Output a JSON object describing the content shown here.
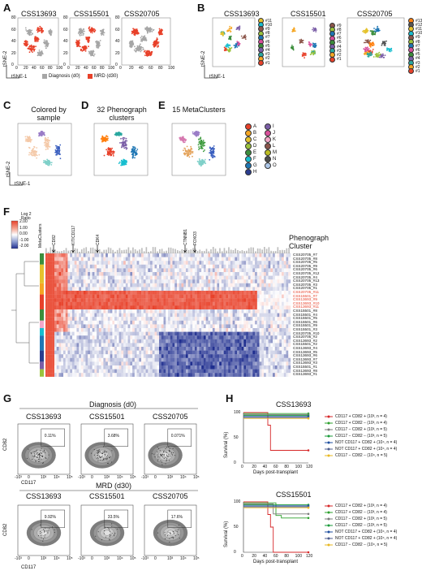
{
  "panels": {
    "A": {
      "label": "A",
      "titles": [
        "CSS13693",
        "CSS15501",
        "CSS20705"
      ],
      "xticks": [
        "0",
        "20",
        "40",
        "60",
        "80",
        "100"
      ],
      "yticks": [
        "80",
        "60",
        "40",
        "20",
        "0"
      ],
      "xaxis": "tSNE-1",
      "yaxis": "tSNE-2",
      "legend": [
        {
          "label": "Diagnosis (d0)",
          "color": "#a6a6a6"
        },
        {
          "label": "MRD (d30)",
          "color": "#e8412a"
        }
      ]
    },
    "B": {
      "label": "B",
      "titles": [
        "CSS13693",
        "CSS15501",
        "CSS20705"
      ],
      "xaxis": "tSNE-1",
      "yaxis": "tSNE-2",
      "legend13693": [
        "#11",
        "#10",
        "#9",
        "#8",
        "#7",
        "#6",
        "#5",
        "#4",
        "#3",
        "#2",
        "#1"
      ],
      "legend15501": [
        "#9",
        "#8",
        "#7",
        "#6",
        "#5",
        "#4",
        "#3",
        "#2",
        "#1"
      ],
      "legend20705": [
        "#13",
        "#12",
        "#11",
        "#10",
        "#9",
        "#8",
        "#7",
        "#6",
        "#5",
        "#4",
        "#3",
        "#2",
        "#1"
      ]
    },
    "C": {
      "label": "C",
      "title": "Colored by sample",
      "xaxis": "tSNE-1",
      "yaxis": "tSNE-2"
    },
    "D": {
      "label": "D",
      "title": "32 Phenograph clusters"
    },
    "E": {
      "label": "E",
      "title": "15 MetaClusters"
    },
    "meta_legend": [
      "A",
      "B",
      "C",
      "D",
      "E",
      "F",
      "G",
      "H",
      "I",
      "J",
      "K",
      "L",
      "M",
      "N",
      "O"
    ],
    "F": {
      "label": "F",
      "scale_title": "Log 2 Ratio",
      "scale_ticks": [
        "2.00",
        "1.00",
        "0.00",
        "-1.00",
        "-2.00"
      ],
      "meta_label": "MetaClusters",
      "markers": [
        "CD82",
        "KIT/CD117",
        "CDK4",
        "CTNNB1",
        "FOXO3"
      ],
      "cluster_header": "Phenograph Cluster",
      "rows": [
        "CSS20705_#7",
        "CSS20705_#8",
        "CSS20705_#5",
        "CSS20705_#9",
        "CSS20705_#6",
        "CSS20705_#12",
        "CSS20705_#4",
        "CSS20705_#13",
        "CSS20705_#3",
        "CSS20705_#1",
        "CSS20705_#11",
        "CSS15501_#7",
        "CSS13693_#9",
        "CSS13693_#10",
        "CSS13693_#11",
        "CSS15501_#8",
        "CSS15501_#4",
        "CSS15501_#5",
        "CSS15501_#6",
        "CSS15501_#9",
        "CSS15501_#3",
        "CSS20705_#10",
        "CSS20705_#2",
        "CSS13693_#2",
        "CSS15501_#2",
        "CSS13693_#4",
        "CSS13693_#5",
        "CSS13693_#6",
        "CSS13693_#7",
        "CSS13693_#3",
        "CSS15501_#1",
        "CSS13693_#8",
        "CSS13693_#1"
      ],
      "highlight_rows": [
        "CSS20705_#11",
        "CSS15501_#7",
        "CSS13693_#9",
        "CSS13693_#10",
        "CSS13693_#11"
      ]
    },
    "G": {
      "label": "G",
      "top_title": "Diagnosis (d0)",
      "bottom_title": "MRD (d30)",
      "samples": [
        "CSS13693",
        "CSS15501",
        "CSS20705"
      ],
      "top_gate": [
        "0.11%",
        "3.68%",
        "0.071%"
      ],
      "bottom_gate": [
        "9.92%",
        "33.5%",
        "17.6%"
      ],
      "yaxis": "CD82",
      "xaxis": "CD117",
      "ticks": [
        "-10³",
        "0",
        "10³",
        "10⁴",
        "10⁵"
      ]
    },
    "H": {
      "label": "H",
      "top_title": "CSS13693",
      "bottom_title": "CSS15501",
      "yaxis": "Survival (%)",
      "xaxis": "Days post-transplant",
      "yticks": [
        "100",
        "50",
        "0"
      ],
      "xticks": [
        "0",
        "20",
        "40",
        "60",
        "80",
        "100",
        "120"
      ],
      "legend": [
        {
          "label": "CD117 + CD82 + (10³, n = 4)",
          "color": "#d62728"
        },
        {
          "label": "CD117 + CD82 − (10³, n = 4)",
          "color": "#2ca02c"
        },
        {
          "label": "CD117 − CD82 + (10³, n = 5)",
          "color": "#7a7a7a"
        },
        {
          "label": "CD117 − CD82 − (10³, n = 5)",
          "color": "#1a9a3a"
        },
        {
          "label": "NOT CD117 + CD82 + (10⁴, n = 4)",
          "color": "#1f4fa0"
        },
        {
          "label": "NOT CD117 + CD82 + (10⁴, n = 4)",
          "color": "#4d5d8d"
        },
        {
          "label": "CD117 − CD82 − (10⁴, n = 5)",
          "color": "#e8b822"
        }
      ]
    }
  },
  "chart_data": [
    {
      "type": "line",
      "title": "CSS13693",
      "xlabel": "Days post-transplant",
      "ylabel": "Survival (%)",
      "xlim": [
        0,
        120
      ],
      "ylim": [
        0,
        100
      ],
      "series": [
        {
          "name": "CD117 + CD82 + (10³, n = 4)",
          "x": [
            0,
            45,
            45,
            50,
            50,
            120
          ],
          "y": [
            100,
            100,
            75,
            75,
            25,
            25
          ]
        },
        {
          "name": "CD117 + CD82 − (10³, n = 4)",
          "x": [
            0,
            120
          ],
          "y": [
            100,
            100
          ]
        },
        {
          "name": "CD117 − CD82 + (10³, n = 5)",
          "x": [
            0,
            120
          ],
          "y": [
            100,
            100
          ]
        },
        {
          "name": "CD117 − CD82 − (10³, n = 5)",
          "x": [
            0,
            120
          ],
          "y": [
            100,
            100
          ]
        },
        {
          "name": "NOT CD117 + CD82 + (10⁴, n = 4)",
          "x": [
            0,
            120
          ],
          "y": [
            100,
            100
          ]
        },
        {
          "name": "NOT CD117 + CD82 + (10⁴, n = 4)",
          "x": [
            0,
            120
          ],
          "y": [
            100,
            100
          ]
        },
        {
          "name": "CD117 − CD82 − (10⁴, n = 5)",
          "x": [
            0,
            120
          ],
          "y": [
            100,
            100
          ]
        }
      ]
    },
    {
      "type": "line",
      "title": "CSS15501",
      "xlabel": "Days post-transplant",
      "ylabel": "Survival (%)",
      "xlim": [
        0,
        120
      ],
      "ylim": [
        0,
        100
      ],
      "series": [
        {
          "name": "CD117 + CD82 + (10³, n = 4)",
          "x": [
            0,
            45,
            45,
            50,
            50,
            55,
            55,
            120
          ],
          "y": [
            100,
            100,
            75,
            75,
            50,
            50,
            0,
            0
          ]
        },
        {
          "name": "CD117 + CD82 − (10³, n = 4)",
          "x": [
            0,
            60,
            60,
            70,
            70,
            120
          ],
          "y": [
            100,
            100,
            75,
            75,
            70,
            70
          ]
        },
        {
          "name": "CD117 − CD82 + (10³, n = 5)",
          "x": [
            0,
            55,
            55,
            120
          ],
          "y": [
            100,
            100,
            80,
            80
          ]
        },
        {
          "name": "CD117 − CD82 − (10³, n = 5)",
          "x": [
            0,
            120
          ],
          "y": [
            100,
            100
          ]
        },
        {
          "name": "NOT CD117 + CD82 + (10⁴, n = 4)",
          "x": [
            0,
            120
          ],
          "y": [
            100,
            100
          ]
        },
        {
          "name": "NOT CD117 + CD82 + (10⁴, n = 4)",
          "x": [
            0,
            120
          ],
          "y": [
            100,
            100
          ]
        },
        {
          "name": "CD117 − CD82 − (10⁴, n = 5)",
          "x": [
            0,
            120
          ],
          "y": [
            100,
            100
          ]
        }
      ]
    }
  ]
}
